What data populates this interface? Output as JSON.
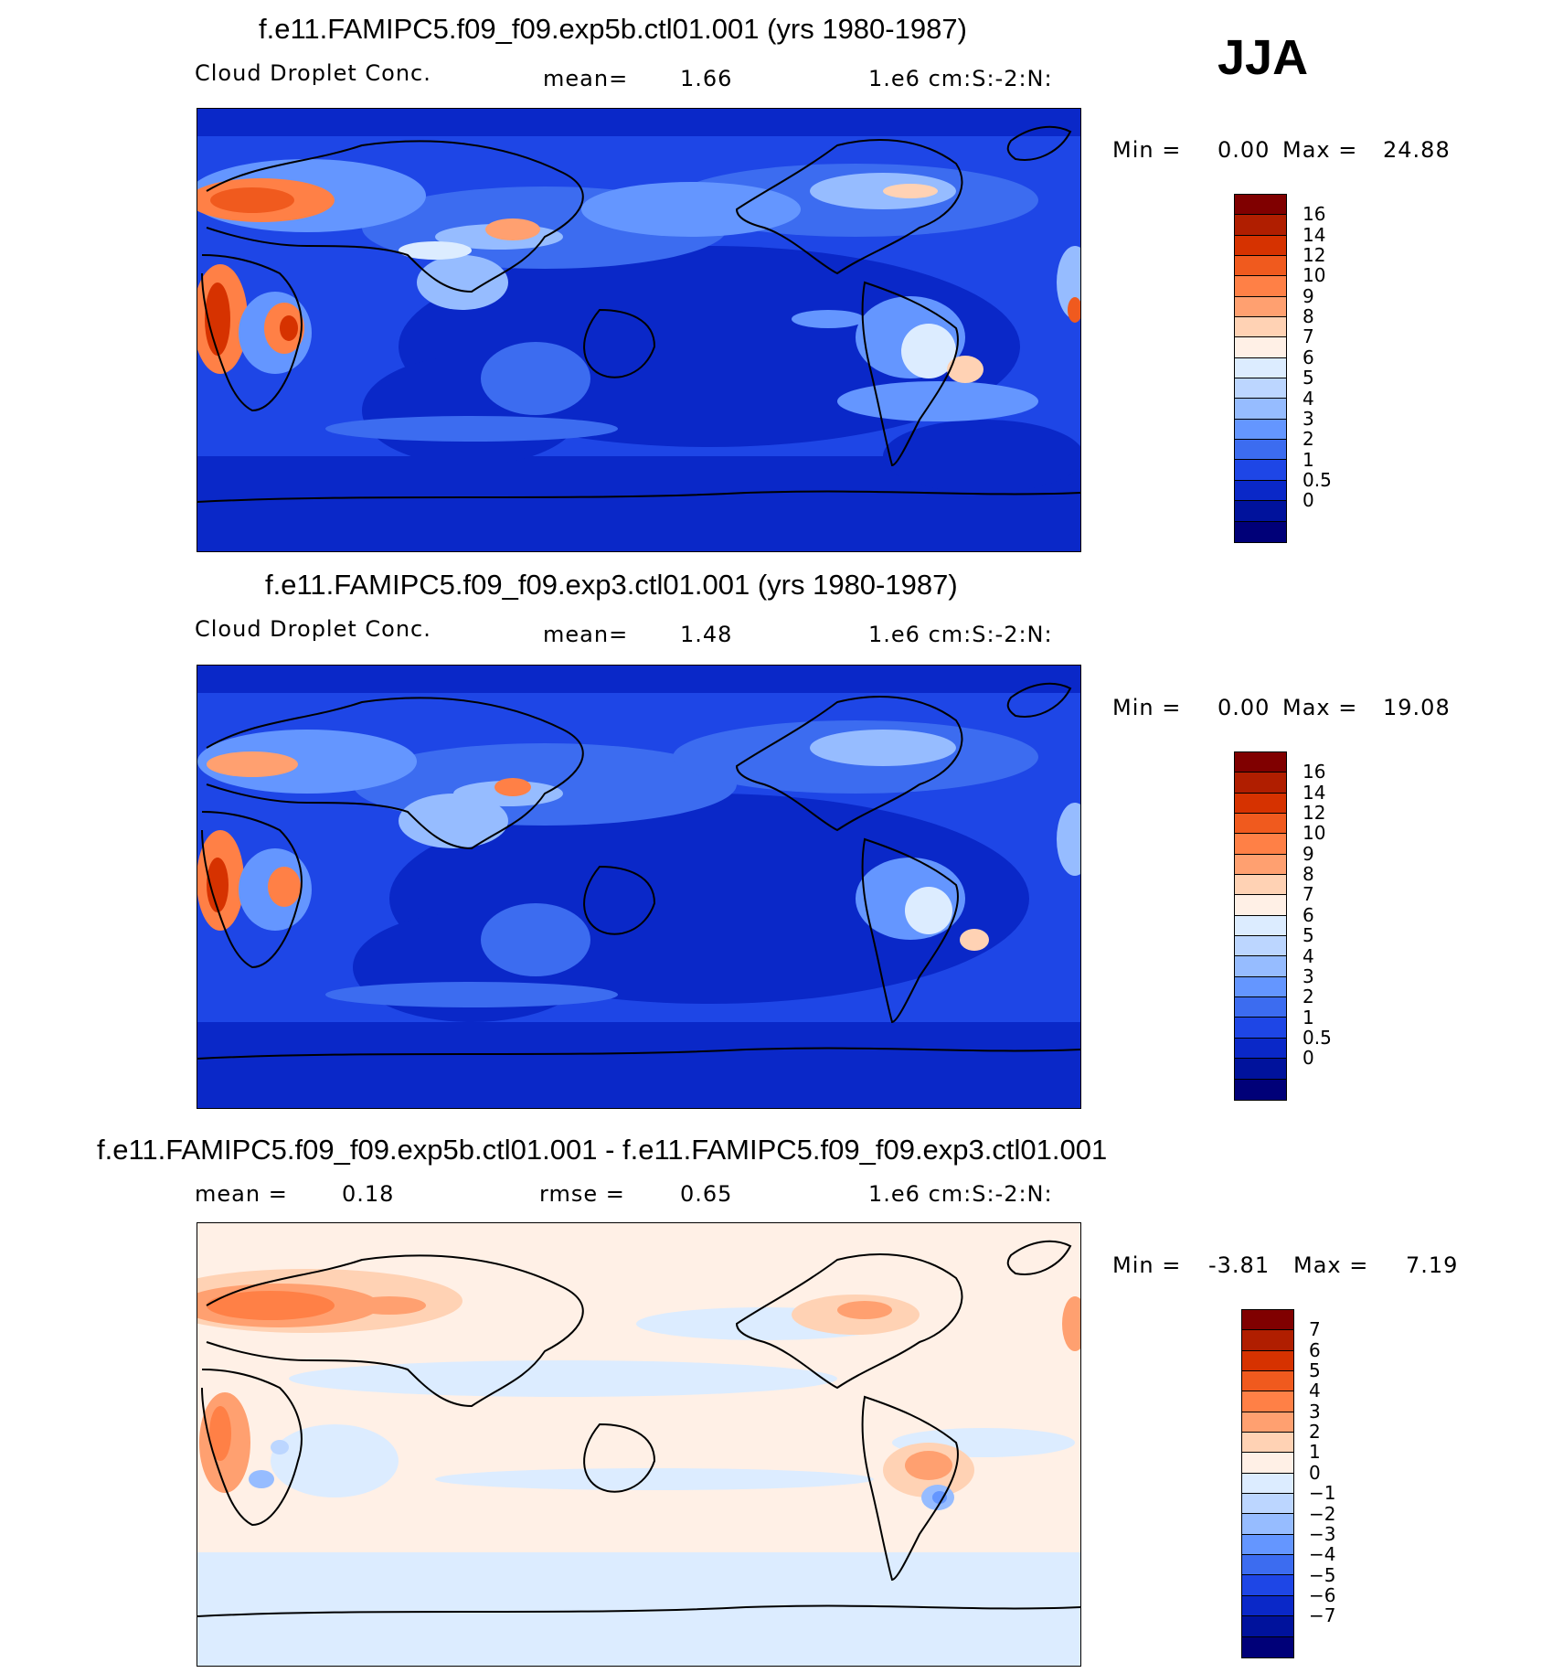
{
  "season": "JJA",
  "panels": [
    {
      "title": "f.e11.FAMIPC5.f09_f09.exp5b.ctl01.001 (yrs 1980-1987)",
      "left_label": "Cloud Droplet Conc.",
      "mid_label": "mean=",
      "mid_value": "1.66",
      "units": "1.e6 cm:S:-2:N:",
      "min_label": "Min =",
      "min_value": "0.00",
      "max_label": "Max =",
      "max_value": "24.88",
      "colorbar": {
        "colors": [
          "#800000",
          "#b01e00",
          "#d63200",
          "#f05a1e",
          "#ff8046",
          "#ffa070",
          "#ffd2b4",
          "#fff0e6",
          "#dcecff",
          "#bcd6ff",
          "#96bcff",
          "#6496ff",
          "#3c6cf0",
          "#1e46e6",
          "#0a28c8",
          "#00129c",
          "#000078"
        ],
        "labels": [
          "16",
          "14",
          "12",
          "10",
          "9",
          "8",
          "7",
          "6",
          "5",
          "4",
          "3",
          "2",
          "1",
          "0.5",
          "0"
        ]
      }
    },
    {
      "title": "f.e11.FAMIPC5.f09_f09.exp3.ctl01.001 (yrs 1980-1987)",
      "left_label": "Cloud Droplet Conc.",
      "mid_label": "mean=",
      "mid_value": "1.48",
      "units": "1.e6 cm:S:-2:N:",
      "min_label": "Min =",
      "min_value": "0.00",
      "max_label": "Max =",
      "max_value": "19.08",
      "colorbar": {
        "colors": [
          "#800000",
          "#b01e00",
          "#d63200",
          "#f05a1e",
          "#ff8046",
          "#ffa070",
          "#ffd2b4",
          "#fff0e6",
          "#dcecff",
          "#bcd6ff",
          "#96bcff",
          "#6496ff",
          "#3c6cf0",
          "#1e46e6",
          "#0a28c8",
          "#00129c",
          "#000078"
        ],
        "labels": [
          "16",
          "14",
          "12",
          "10",
          "9",
          "8",
          "7",
          "6",
          "5",
          "4",
          "3",
          "2",
          "1",
          "0.5",
          "0"
        ]
      }
    },
    {
      "title": "f.e11.FAMIPC5.f09_f09.exp5b.ctl01.001 - f.e11.FAMIPC5.f09_f09.exp3.ctl01.001",
      "left_label": "mean =",
      "left_value": "0.18",
      "mid_label": "rmse =",
      "mid_value": "0.65",
      "units": "1.e6 cm:S:-2:N:",
      "min_label": "Min =",
      "min_value": "-3.81",
      "max_label": "Max =",
      "max_value": "7.19",
      "colorbar": {
        "colors": [
          "#800000",
          "#b01e00",
          "#d63200",
          "#f05a1e",
          "#ff8046",
          "#ffa070",
          "#ffd2b4",
          "#fff0e6",
          "#dcecff",
          "#bcd6ff",
          "#96bcff",
          "#6496ff",
          "#3c6cf0",
          "#1e46e6",
          "#0a28c8",
          "#00129c",
          "#000078"
        ],
        "labels": [
          "7",
          "6",
          "5",
          "4",
          "3",
          "2",
          "1",
          "0",
          "-1",
          "-2",
          "-3",
          "-4",
          "-5",
          "-6",
          "-7"
        ]
      }
    }
  ]
}
